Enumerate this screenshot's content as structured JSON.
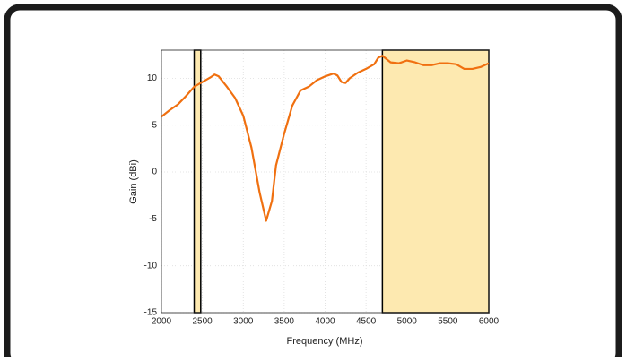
{
  "chart_data": {
    "type": "line",
    "xlabel": "Frequency (MHz)",
    "ylabel": "Gain (dBi)",
    "x": [
      2000,
      2100,
      2200,
      2300,
      2400,
      2500,
      2600,
      2650,
      2700,
      2800,
      2900,
      3000,
      3100,
      3200,
      3280,
      3350,
      3400,
      3500,
      3600,
      3700,
      3800,
      3900,
      4000,
      4100,
      4150,
      4200,
      4250,
      4300,
      4400,
      4500,
      4600,
      4650,
      4700,
      4800,
      4900,
      5000,
      5100,
      5200,
      5300,
      5400,
      5500,
      5600,
      5700,
      5800,
      5900,
      6000
    ],
    "series": [
      {
        "color": "#f07010",
        "values": [
          5.9,
          6.6,
          7.2,
          8.1,
          9.1,
          9.6,
          10.1,
          10.4,
          10.2,
          9.1,
          7.9,
          6.0,
          2.6,
          -2.2,
          -5.2,
          -3.1,
          0.7,
          4.1,
          7.1,
          8.7,
          9.1,
          9.8,
          10.2,
          10.5,
          10.3,
          9.6,
          9.5,
          10.0,
          10.6,
          11.0,
          11.5,
          12.2,
          12.4,
          11.7,
          11.6,
          11.9,
          11.7,
          11.4,
          11.4,
          11.6,
          11.6,
          11.5,
          11.0,
          11.0,
          11.2,
          11.6
        ]
      }
    ],
    "bands": [
      [
        2400,
        2480
      ],
      [
        4700,
        6000
      ]
    ],
    "band_color": "#fde9b0",
    "xlim": [
      2000,
      6000
    ],
    "ylim": [
      -15,
      13
    ],
    "xticks": [
      2000,
      2500,
      3000,
      3500,
      4000,
      4500,
      5000,
      5500,
      6000
    ],
    "yticks": [
      -15,
      -10,
      -5,
      0,
      5,
      10
    ],
    "grid": true
  }
}
